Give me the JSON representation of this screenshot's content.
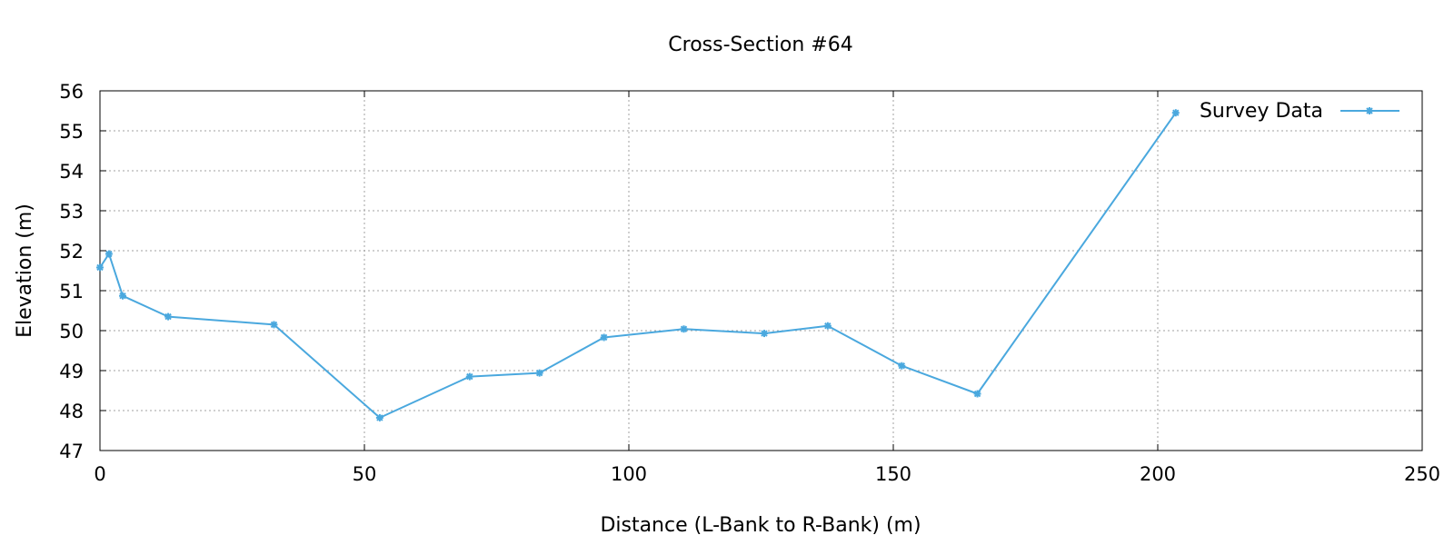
{
  "chart_data": {
    "type": "line",
    "title": "Cross-Section #64",
    "xlabel": "Distance (L-Bank to R-Bank) (m)",
    "ylabel": "Elevation (m)",
    "xlim": [
      0,
      250
    ],
    "ylim": [
      47,
      56
    ],
    "x_ticks": [
      0,
      50,
      100,
      150,
      200,
      250
    ],
    "y_ticks": [
      47,
      48,
      49,
      50,
      51,
      52,
      53,
      54,
      55,
      56
    ],
    "grid": true,
    "legend_position": "top-right",
    "series": [
      {
        "name": "Survey Data",
        "color": "#4aa8de",
        "marker": "star",
        "x": [
          0,
          1.7,
          4.3,
          12.9,
          32.9,
          52.9,
          69.9,
          83.1,
          95.3,
          110.4,
          125.6,
          137.6,
          151.6,
          165.9,
          203.4
        ],
        "y": [
          51.58,
          51.92,
          50.87,
          50.35,
          50.15,
          47.82,
          48.85,
          48.94,
          49.83,
          50.04,
          49.93,
          50.12,
          49.12,
          48.42,
          55.45
        ]
      }
    ]
  }
}
